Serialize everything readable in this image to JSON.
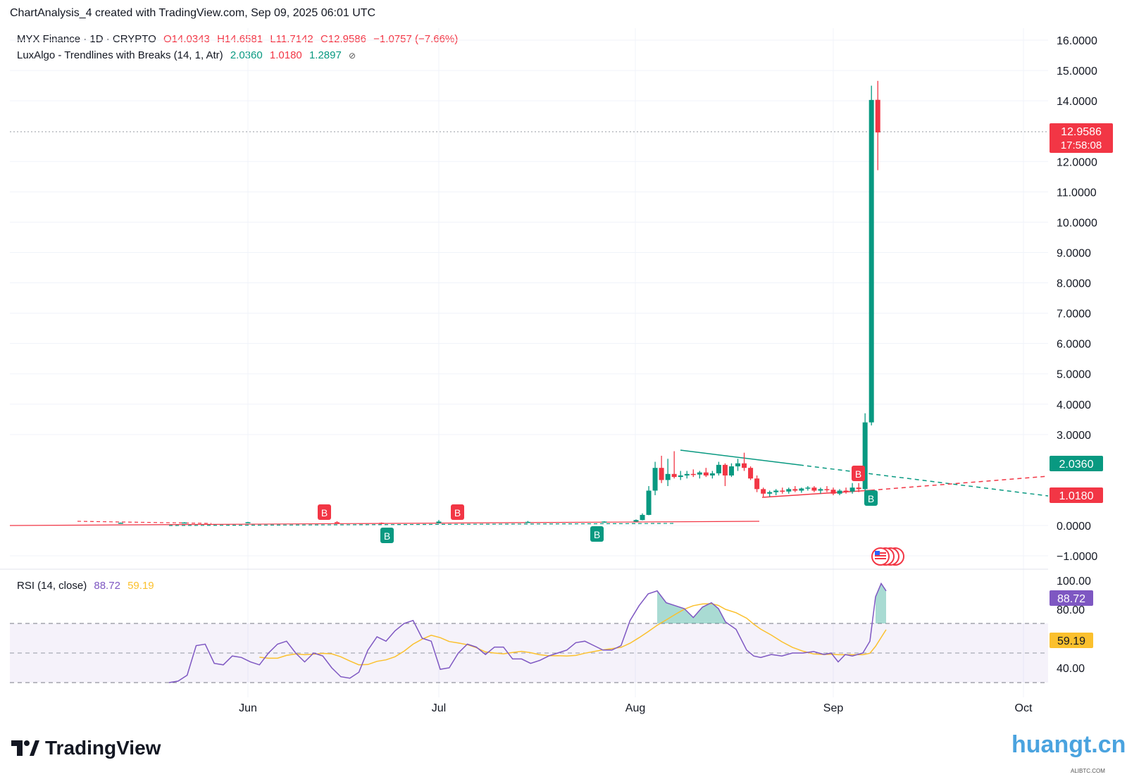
{
  "header": {
    "text": "ChartAnalysis_4 created with TradingView.com, Sep 09, 2025 06:01 UTC"
  },
  "legend_main": {
    "symbol": "MYX Finance · 1D · CRYPTO",
    "open": "O14.0343",
    "high": "H14.6581",
    "low": "L11.7142",
    "close": "C12.9586",
    "change": "−1.0757 (−7.66%)"
  },
  "legend_indicator": {
    "name": "LuxAlgo - Trendlines with Breaks (14, 1, Atr)",
    "v1": "2.0360",
    "v2": "1.0180",
    "v3": "1.2897",
    "eye_icon": "eye-off-icon"
  },
  "legend_rsi": {
    "name": "RSI (14, close)",
    "v1": "88.72",
    "v2": "59.19"
  },
  "price_axis": {
    "labels": [
      "16.0000",
      "15.0000",
      "14.0000",
      "12.0000",
      "11.0000",
      "10.0000",
      "9.0000",
      "8.0000",
      "7.0000",
      "6.0000",
      "5.0000",
      "4.0000",
      "3.0000",
      "0.0000",
      "−1.0000"
    ]
  },
  "rsi_axis": {
    "labels": [
      "100.00",
      "80.00",
      "40.00"
    ]
  },
  "time_axis": {
    "labels": [
      "Jun",
      "Jul",
      "Aug",
      "Sep",
      "Oct"
    ]
  },
  "badges": {
    "last_price": "12.9586",
    "countdown": "17:58:08",
    "upper_trend": "2.0360",
    "lower_trend": "1.0180",
    "rsi": "88.72",
    "rsi_ma": "59.19"
  },
  "signals": {
    "bull": "B",
    "bear": "B"
  },
  "brand": {
    "logo_text": "TradingView"
  },
  "watermark": {
    "text": "huangt.cn",
    "small": "ALIBTC.COM"
  },
  "colors": {
    "up": "#089981",
    "down": "#f23645",
    "rsi": "#7e57c2",
    "rsi_ma": "#fbc02d"
  },
  "chart_data": {
    "type": "candlestick",
    "title": "MYX Finance · 1D · CRYPTO",
    "x_ticks": [
      "Jun",
      "Jul",
      "Aug",
      "Sep",
      "Oct"
    ],
    "ylim": [
      -1.4,
      16.2
    ],
    "last_price": 12.9586,
    "candles": [
      {
        "date": "2025-05-12",
        "o": 0.09,
        "h": 0.1,
        "l": 0.08,
        "c": 0.09
      },
      {
        "date": "2025-05-22",
        "o": 0.09,
        "h": 0.11,
        "l": 0.08,
        "c": 0.1
      },
      {
        "date": "2025-06-01",
        "o": 0.1,
        "h": 0.12,
        "l": 0.09,
        "c": 0.11
      },
      {
        "date": "2025-06-15",
        "o": 0.11,
        "h": 0.14,
        "l": 0.08,
        "c": 0.09
      },
      {
        "date": "2025-06-22",
        "o": 0.09,
        "h": 0.1,
        "l": 0.05,
        "c": 0.07
      },
      {
        "date": "2025-07-01",
        "o": 0.08,
        "h": 0.18,
        "l": 0.07,
        "c": 0.13
      },
      {
        "date": "2025-07-15",
        "o": 0.12,
        "h": 0.15,
        "l": 0.1,
        "c": 0.12
      },
      {
        "date": "2025-07-27",
        "o": 0.12,
        "h": 0.14,
        "l": 0.1,
        "c": 0.13
      },
      {
        "date": "2025-08-01",
        "o": 0.13,
        "h": 0.2,
        "l": 0.12,
        "c": 0.18
      },
      {
        "date": "2025-08-02",
        "o": 0.18,
        "h": 0.4,
        "l": 0.17,
        "c": 0.35
      },
      {
        "date": "2025-08-03",
        "o": 0.35,
        "h": 1.3,
        "l": 0.34,
        "c": 1.15
      },
      {
        "date": "2025-08-04",
        "o": 1.15,
        "h": 2.1,
        "l": 1.0,
        "c": 1.9
      },
      {
        "date": "2025-08-05",
        "o": 1.9,
        "h": 2.3,
        "l": 1.4,
        "c": 1.5
      },
      {
        "date": "2025-08-06",
        "o": 1.5,
        "h": 2.2,
        "l": 1.3,
        "c": 1.7
      },
      {
        "date": "2025-08-07",
        "o": 1.7,
        "h": 2.45,
        "l": 1.55,
        "c": 1.6
      },
      {
        "date": "2025-08-08",
        "o": 1.6,
        "h": 1.8,
        "l": 1.5,
        "c": 1.65
      },
      {
        "date": "2025-08-09",
        "o": 1.65,
        "h": 1.8,
        "l": 1.55,
        "c": 1.7
      },
      {
        "date": "2025-08-10",
        "o": 1.7,
        "h": 1.85,
        "l": 1.6,
        "c": 1.68
      },
      {
        "date": "2025-08-11",
        "o": 1.68,
        "h": 1.8,
        "l": 1.55,
        "c": 1.75
      },
      {
        "date": "2025-08-12",
        "o": 1.75,
        "h": 1.9,
        "l": 1.6,
        "c": 1.65
      },
      {
        "date": "2025-08-13",
        "o": 1.65,
        "h": 1.8,
        "l": 1.55,
        "c": 1.72
      },
      {
        "date": "2025-08-14",
        "o": 1.72,
        "h": 2.1,
        "l": 1.65,
        "c": 2.0
      },
      {
        "date": "2025-08-15",
        "o": 2.0,
        "h": 2.05,
        "l": 1.3,
        "c": 1.65
      },
      {
        "date": "2025-08-16",
        "o": 1.65,
        "h": 2.05,
        "l": 1.6,
        "c": 1.95
      },
      {
        "date": "2025-08-17",
        "o": 1.95,
        "h": 2.2,
        "l": 1.8,
        "c": 2.05
      },
      {
        "date": "2025-08-18",
        "o": 2.05,
        "h": 2.4,
        "l": 1.8,
        "c": 1.9
      },
      {
        "date": "2025-08-19",
        "o": 1.9,
        "h": 1.95,
        "l": 1.5,
        "c": 1.55
      },
      {
        "date": "2025-08-20",
        "o": 1.55,
        "h": 1.65,
        "l": 1.1,
        "c": 1.2
      },
      {
        "date": "2025-08-21",
        "o": 1.2,
        "h": 1.25,
        "l": 0.95,
        "c": 1.05
      },
      {
        "date": "2025-08-22",
        "o": 1.05,
        "h": 1.15,
        "l": 0.95,
        "c": 1.1
      },
      {
        "date": "2025-08-23",
        "o": 1.1,
        "h": 1.2,
        "l": 1.0,
        "c": 1.15
      },
      {
        "date": "2025-08-24",
        "o": 1.15,
        "h": 1.25,
        "l": 1.05,
        "c": 1.12
      },
      {
        "date": "2025-08-25",
        "o": 1.12,
        "h": 1.25,
        "l": 1.05,
        "c": 1.2
      },
      {
        "date": "2025-08-26",
        "o": 1.2,
        "h": 1.3,
        "l": 1.1,
        "c": 1.15
      },
      {
        "date": "2025-08-27",
        "o": 1.15,
        "h": 1.25,
        "l": 1.08,
        "c": 1.22
      },
      {
        "date": "2025-08-28",
        "o": 1.22,
        "h": 1.3,
        "l": 1.15,
        "c": 1.25
      },
      {
        "date": "2025-08-29",
        "o": 1.25,
        "h": 1.3,
        "l": 1.1,
        "c": 1.15
      },
      {
        "date": "2025-08-30",
        "o": 1.15,
        "h": 1.25,
        "l": 1.05,
        "c": 1.2
      },
      {
        "date": "2025-08-31",
        "o": 1.2,
        "h": 1.3,
        "l": 1.1,
        "c": 1.18
      },
      {
        "date": "2025-09-01",
        "o": 1.18,
        "h": 1.25,
        "l": 1.0,
        "c": 1.05
      },
      {
        "date": "2025-09-02",
        "o": 1.05,
        "h": 1.2,
        "l": 1.0,
        "c": 1.15
      },
      {
        "date": "2025-09-03",
        "o": 1.15,
        "h": 1.25,
        "l": 1.05,
        "c": 1.12
      },
      {
        "date": "2025-09-04",
        "o": 1.12,
        "h": 1.4,
        "l": 1.05,
        "c": 1.25
      },
      {
        "date": "2025-09-05",
        "o": 1.25,
        "h": 1.4,
        "l": 1.1,
        "c": 1.2
      },
      {
        "date": "2025-09-06",
        "o": 1.2,
        "h": 3.7,
        "l": 1.15,
        "c": 3.4
      },
      {
        "date": "2025-09-07",
        "o": 3.4,
        "h": 14.5,
        "l": 3.3,
        "c": 14.03
      },
      {
        "date": "2025-09-08",
        "o": 14.0343,
        "h": 14.6581,
        "l": 11.7142,
        "c": 12.9586
      }
    ],
    "trendlines": {
      "upper": 2.036,
      "lower": 1.018
    },
    "rsi": {
      "name": "RSI (14, close)",
      "ylim": [
        20,
        100
      ],
      "bands": [
        70,
        50,
        30
      ],
      "rsi_last": 88.72,
      "ma_last": 59.19
    }
  }
}
